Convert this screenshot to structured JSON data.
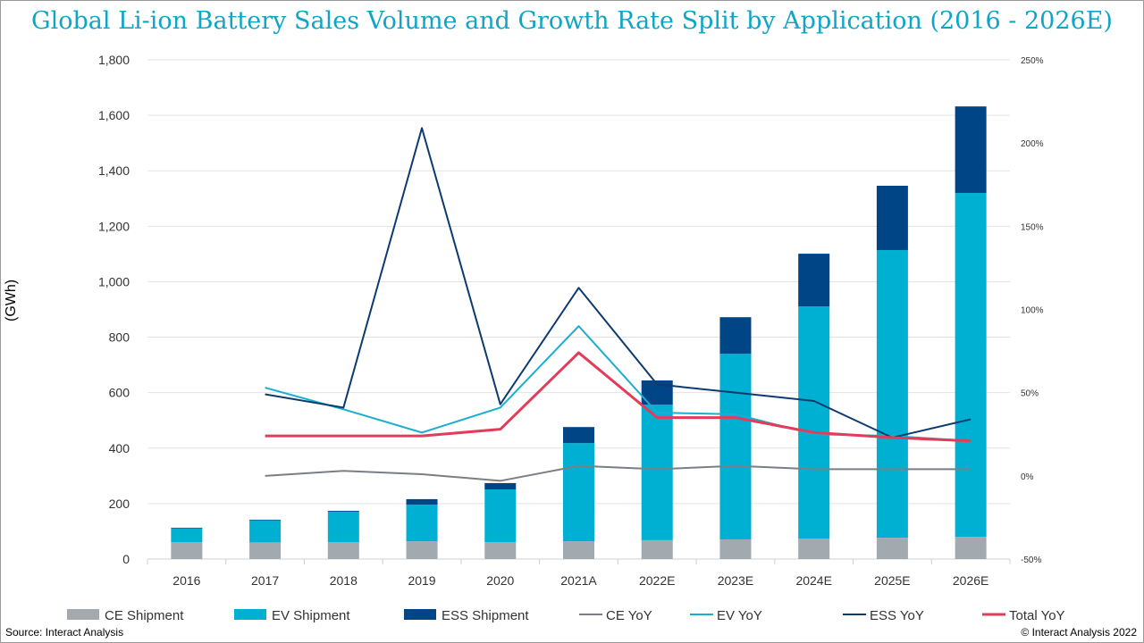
{
  "title": "Global Li-ion Battery Sales Volume and Growth Rate Split by Application (2016 - 2026E)",
  "source": "Source: Interact Analysis",
  "copyright": "© Interact Analysis 2022",
  "chart_data": {
    "type": "bar",
    "stacked": true,
    "title": "Global Li-ion Battery Sales Volume and Growth Rate Split by Application (2016 - 2026E)",
    "ylabel": "(GWh)",
    "ylim": [
      0,
      1800
    ],
    "yticks": [
      0,
      200,
      400,
      600,
      800,
      1000,
      1200,
      1400,
      1600,
      1800
    ],
    "ytick_labels": [
      "0",
      "200",
      "400",
      "600",
      "800",
      "1,000",
      "1,200",
      "1,400",
      "1,600",
      "1,800"
    ],
    "y2lim": [
      -50,
      250
    ],
    "y2ticks": [
      -50,
      0,
      50,
      100,
      150,
      200,
      250
    ],
    "y2tick_labels": [
      "-50%",
      "0%",
      "50%",
      "100%",
      "150%",
      "200%",
      "250%"
    ],
    "grid": true,
    "legend_placement": "bottom",
    "categories": [
      "2016",
      "2017",
      "2018",
      "2019",
      "2020",
      "2021A",
      "2022E",
      "2023E",
      "2024E",
      "2025E",
      "2026E"
    ],
    "series": [
      {
        "name": "CE Shipment",
        "kind": "bar",
        "axis": "left",
        "color": "#a2aab0",
        "values": [
          61,
          60,
          61,
          64,
          61,
          64,
          68,
          71,
          74,
          77,
          80
        ]
      },
      {
        "name": "EV Shipment",
        "kind": "bar",
        "axis": "left",
        "color": "#00b0d2",
        "values": [
          50,
          80,
          110,
          132,
          190,
          354,
          489,
          669,
          837,
          1037,
          1240
        ]
      },
      {
        "name": "ESS Shipment",
        "kind": "bar",
        "axis": "left",
        "color": "#004585",
        "values": [
          2,
          2,
          3,
          20,
          23,
          58,
          87,
          132,
          190,
          232,
          312
        ]
      },
      {
        "name": "CE YoY",
        "kind": "line",
        "axis": "right",
        "color": "#7a7f85",
        "values": [
          null,
          0,
          3,
          1,
          -3,
          6,
          4,
          6,
          4,
          4,
          4
        ]
      },
      {
        "name": "EV YoY",
        "kind": "line",
        "axis": "right",
        "color": "#1aaed0",
        "values": [
          null,
          53,
          40,
          26,
          41,
          90,
          38,
          37,
          25,
          24,
          21
        ]
      },
      {
        "name": "ESS YoY",
        "kind": "line",
        "axis": "right",
        "color": "#0d3b6e",
        "values": [
          null,
          49,
          41,
          209,
          43,
          113,
          55,
          50,
          45,
          23,
          34
        ]
      },
      {
        "name": "Total YoY",
        "kind": "line",
        "axis": "right",
        "color": "#e23c5a",
        "values": [
          null,
          24,
          24,
          24,
          28,
          74,
          35,
          35,
          26,
          23,
          21
        ]
      }
    ]
  }
}
